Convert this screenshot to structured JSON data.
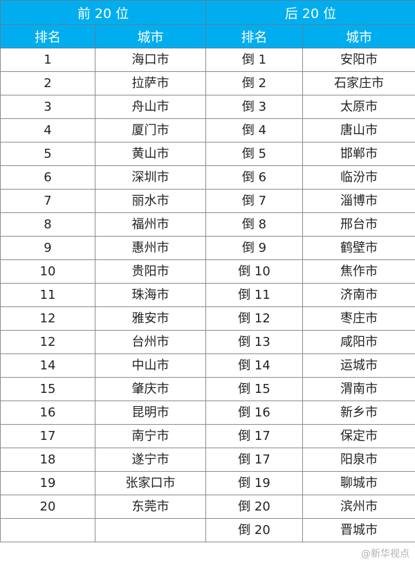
{
  "header": {
    "top": "前 20 位",
    "bottom": "后 20 位",
    "rank": "排名",
    "city": "城市"
  },
  "colors": {
    "header_bg": "#00aeef",
    "header_text": "#ffffff"
  },
  "rows": [
    {
      "r1": "1",
      "c1": "海口市",
      "r2": "倒 1",
      "c2": "安阳市"
    },
    {
      "r1": "2",
      "c1": "拉萨市",
      "r2": "倒 2",
      "c2": "石家庄市"
    },
    {
      "r1": "3",
      "c1": "舟山市",
      "r2": "倒 3",
      "c2": "太原市"
    },
    {
      "r1": "4",
      "c1": "厦门市",
      "r2": "倒 4",
      "c2": "唐山市"
    },
    {
      "r1": "5",
      "c1": "黄山市",
      "r2": "倒 5",
      "c2": "邯郸市"
    },
    {
      "r1": "6",
      "c1": "深圳市",
      "r2": "倒 6",
      "c2": "临汾市"
    },
    {
      "r1": "7",
      "c1": "丽水市",
      "r2": "倒 7",
      "c2": "淄博市"
    },
    {
      "r1": "8",
      "c1": "福州市",
      "r2": "倒 8",
      "c2": "邢台市"
    },
    {
      "r1": "9",
      "c1": "惠州市",
      "r2": "倒 9",
      "c2": "鹤壁市"
    },
    {
      "r1": "10",
      "c1": "贵阳市",
      "r2": "倒 10",
      "c2": "焦作市"
    },
    {
      "r1": "11",
      "c1": "珠海市",
      "r2": "倒 11",
      "c2": "济南市"
    },
    {
      "r1": "12",
      "c1": "雅安市",
      "r2": "倒 12",
      "c2": "枣庄市"
    },
    {
      "r1": "12",
      "c1": "台州市",
      "r2": "倒 13",
      "c2": "咸阳市"
    },
    {
      "r1": "14",
      "c1": "中山市",
      "r2": "倒 14",
      "c2": "运城市"
    },
    {
      "r1": "15",
      "c1": "肇庆市",
      "r2": "倒 15",
      "c2": "渭南市"
    },
    {
      "r1": "16",
      "c1": "昆明市",
      "r2": "倒 16",
      "c2": "新乡市"
    },
    {
      "r1": "17",
      "c1": "南宁市",
      "r2": "倒 17",
      "c2": "保定市"
    },
    {
      "r1": "18",
      "c1": "遂宁市",
      "r2": "倒 17",
      "c2": "阳泉市"
    },
    {
      "r1": "19",
      "c1": "张家口市",
      "r2": "倒 19",
      "c2": "聊城市"
    },
    {
      "r1": "20",
      "c1": "东莞市",
      "r2": "倒 20",
      "c2": "滨州市"
    },
    {
      "r1": "",
      "c1": "",
      "r2": "倒 20",
      "c2": "晋城市"
    }
  ],
  "watermark": "@新华视点"
}
